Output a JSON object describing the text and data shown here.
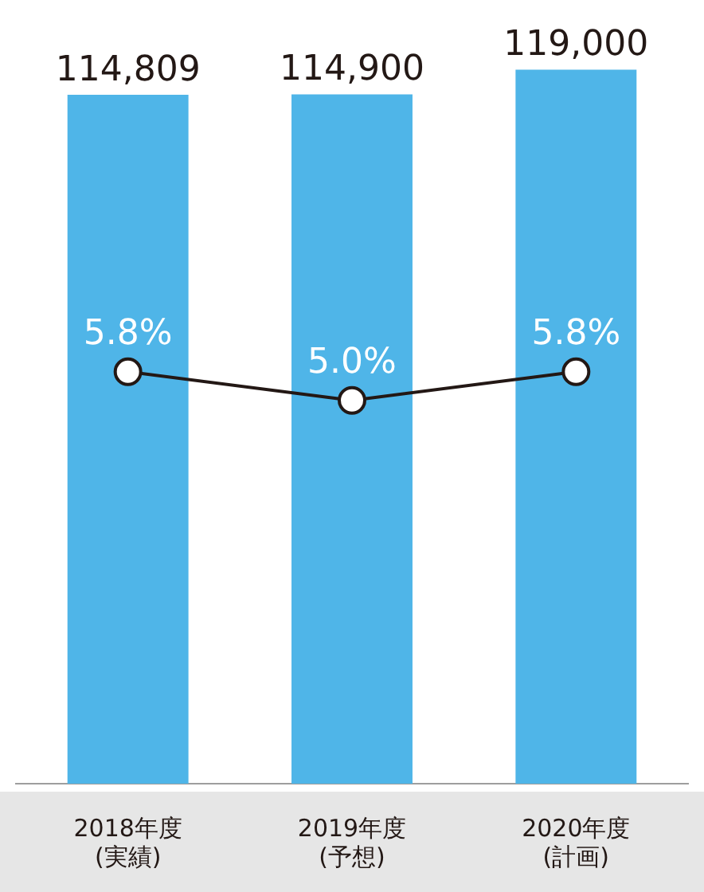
{
  "chart_data": {
    "type": "bar",
    "categories": [
      "2018年度\n(実績)",
      "2019年度\n(予想)",
      "2020年度\n(計画)"
    ],
    "series": [
      {
        "color": "#4fb5e8",
        "values": [
          114809,
          114900,
          119000
        ],
        "value_labels": [
          "114,809",
          "114,900",
          "119,000"
        ]
      },
      {
        "type": "line",
        "axis": "y2",
        "color": "#231815",
        "values": [
          5.8,
          5.0,
          5.8
        ],
        "value_labels": [
          "5.8%",
          "5.0%",
          "5.8%"
        ]
      }
    ],
    "y2lim": [
      -5.7,
      14.4
    ],
    "marker": "circle",
    "line_style": "solid",
    "legend": false
  }
}
